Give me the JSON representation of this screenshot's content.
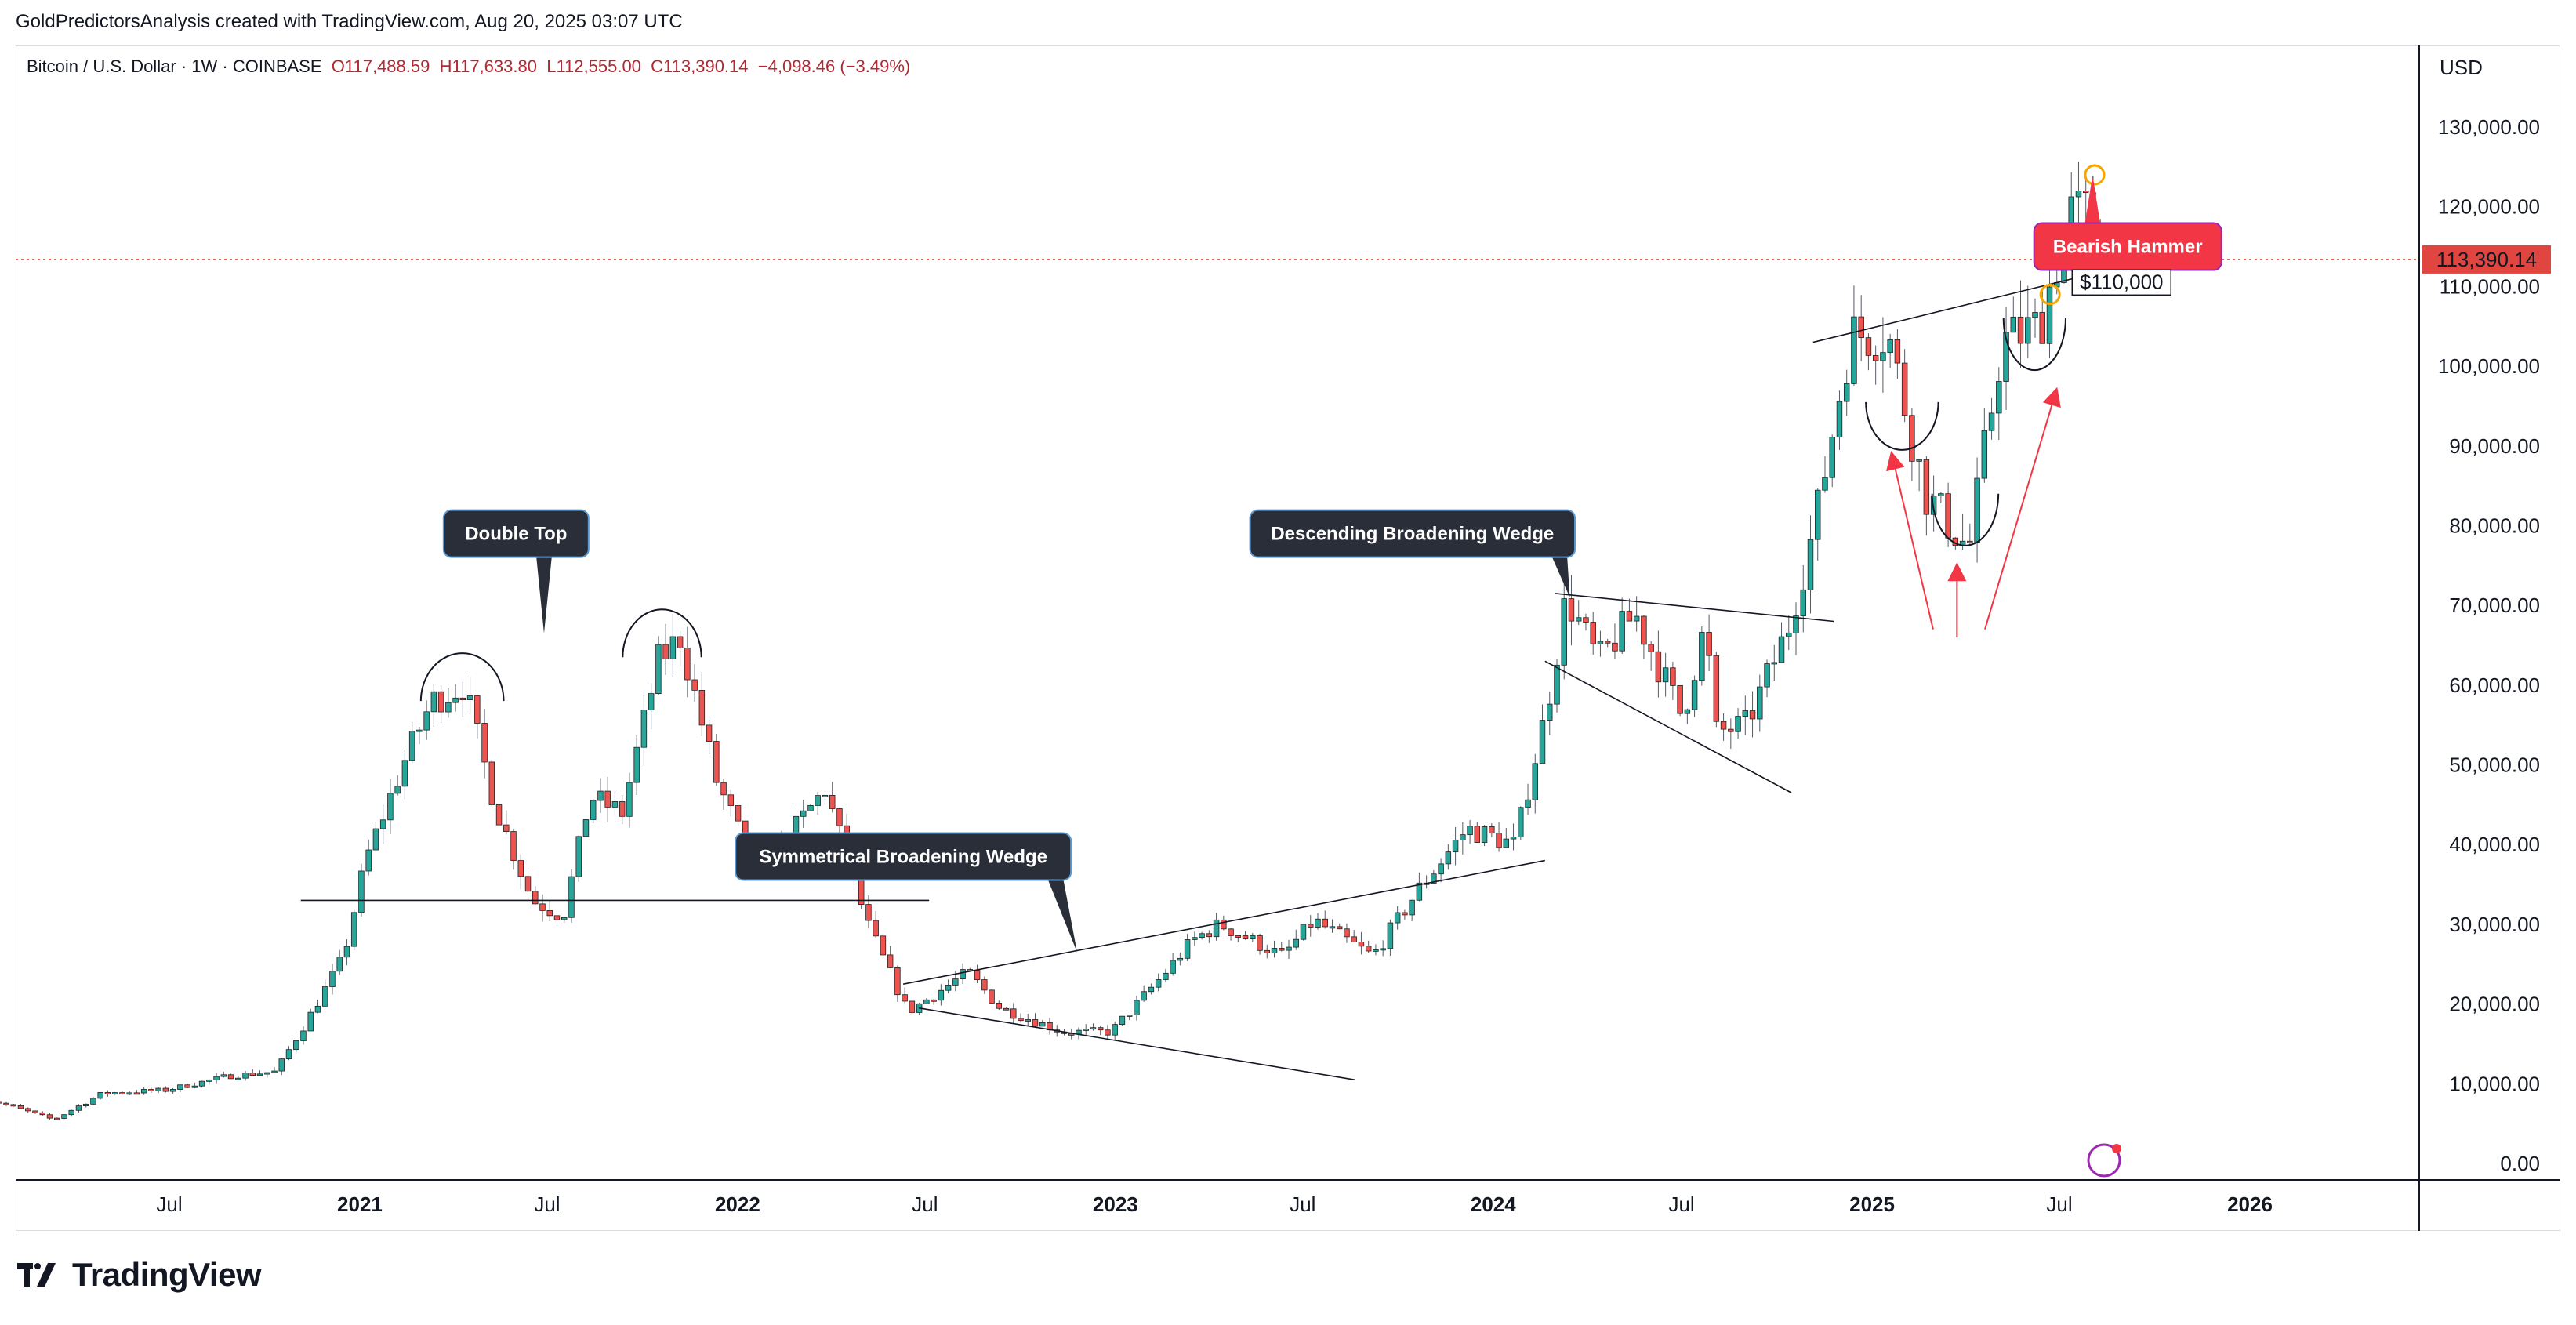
{
  "header": {
    "credit": "GoldPredictorsAnalysis created with TradingView.com, Aug 20, 2025 03:07 UTC"
  },
  "symbol": {
    "name": "Bitcoin / U.S. Dollar · 1W · COINBASE",
    "open": "O117,488.59",
    "high": "H117,633.80",
    "low": "L112,555.00",
    "close": "C113,390.14",
    "change": "−4,098.46 (−3.49%)"
  },
  "footer": {
    "brand": "TradingView"
  },
  "colors": {
    "up": "#26a69a",
    "down": "#ef5350",
    "last_price": "#e0463f",
    "callout_dark": "#2a2e39",
    "callout_red": "#f23645",
    "arrow_red": "#f23645",
    "marker_orange": "#f7a600"
  },
  "chart_data": {
    "type": "candlestick",
    "currency_label": "USD",
    "x_range": [
      "2020-01-01",
      "2026-06-30"
    ],
    "ylim": [
      0,
      135000
    ],
    "y_ticks": [
      0,
      10000,
      20000,
      30000,
      40000,
      50000,
      60000,
      70000,
      80000,
      90000,
      100000,
      110000,
      120000,
      130000
    ],
    "y_tick_labels": [
      "0.00",
      "10,000.00",
      "20,000.00",
      "30,000.00",
      "40,000.00",
      "50,000.00",
      "60,000.00",
      "70,000.00",
      "80,000.00",
      "90,000.00",
      "100,000.00",
      "110,000.00",
      "120,000.00",
      "130,000.00"
    ],
    "x_ticks": [
      {
        "date": "2020-07-01",
        "label": "Jul"
      },
      {
        "date": "2021-01-01",
        "label": "2021"
      },
      {
        "date": "2021-07-01",
        "label": "Jul"
      },
      {
        "date": "2022-01-01",
        "label": "2022"
      },
      {
        "date": "2022-07-01",
        "label": "Jul"
      },
      {
        "date": "2023-01-01",
        "label": "2023"
      },
      {
        "date": "2023-07-01",
        "label": "Jul"
      },
      {
        "date": "2024-01-01",
        "label": "2024"
      },
      {
        "date": "2024-07-01",
        "label": "Jul"
      },
      {
        "date": "2025-01-01",
        "label": "2025"
      },
      {
        "date": "2025-07-01",
        "label": "Jul"
      },
      {
        "date": "2026-01-01",
        "label": "2026"
      }
    ],
    "last_price": {
      "value": 113390.14,
      "label": "113,390.14"
    },
    "price_path": [
      [
        "2020-01-01",
        8500
      ],
      [
        "2020-03-15",
        5500
      ],
      [
        "2020-05-01",
        8800
      ],
      [
        "2020-07-01",
        9200
      ],
      [
        "2020-09-01",
        11000
      ],
      [
        "2020-10-15",
        11500
      ],
      [
        "2020-11-15",
        18000
      ],
      [
        "2020-12-20",
        26000
      ],
      [
        "2021-01-10",
        38000
      ],
      [
        "2021-02-15",
        50000
      ],
      [
        "2021-03-15",
        58000
      ],
      [
        "2021-04-15",
        60000
      ],
      [
        "2021-05-15",
        45000
      ],
      [
        "2021-06-20",
        33000
      ],
      [
        "2021-07-20",
        31000
      ],
      [
        "2021-08-15",
        46000
      ],
      [
        "2021-09-15",
        44000
      ],
      [
        "2021-10-20",
        63000
      ],
      [
        "2021-11-10",
        66000
      ],
      [
        "2021-12-15",
        48000
      ],
      [
        "2022-01-25",
        36000
      ],
      [
        "2022-03-30",
        47000
      ],
      [
        "2022-05-10",
        30000
      ],
      [
        "2022-06-18",
        19000
      ],
      [
        "2022-08-15",
        24000
      ],
      [
        "2022-09-15",
        19500
      ],
      [
        "2022-11-15",
        16500
      ],
      [
        "2022-12-31",
        16500
      ],
      [
        "2023-02-15",
        23000
      ],
      [
        "2023-03-20",
        28000
      ],
      [
        "2023-04-15",
        30000
      ],
      [
        "2023-06-15",
        26000
      ],
      [
        "2023-07-15",
        30500
      ],
      [
        "2023-09-10",
        26000
      ],
      [
        "2023-10-25",
        34500
      ],
      [
        "2023-12-10",
        42000
      ],
      [
        "2024-01-25",
        40000
      ],
      [
        "2024-02-25",
        57000
      ],
      [
        "2024-03-15",
        71000
      ],
      [
        "2024-04-15",
        63000
      ],
      [
        "2024-05-20",
        69000
      ],
      [
        "2024-07-05",
        56000
      ],
      [
        "2024-07-28",
        68000
      ],
      [
        "2024-08-05",
        54000
      ],
      [
        "2024-09-05",
        55000
      ],
      [
        "2024-10-15",
        67000
      ],
      [
        "2024-11-10",
        80000
      ],
      [
        "2024-12-15",
        104000
      ],
      [
        "2025-01-20",
        104000
      ],
      [
        "2025-02-25",
        84000
      ],
      [
        "2025-04-08",
        77000
      ],
      [
        "2025-05-10",
        103000
      ],
      [
        "2025-06-15",
        105000
      ],
      [
        "2025-07-14",
        119000
      ],
      [
        "2025-08-10",
        119000
      ],
      [
        "2025-08-18",
        113390
      ]
    ],
    "trendlines": [
      {
        "from": [
          "2020-11-05",
          33000
        ],
        "to": [
          "2022-07-05",
          33000
        ]
      },
      {
        "from": [
          "2022-06-10",
          22500
        ],
        "to": [
          "2024-02-20",
          38000
        ]
      },
      {
        "from": [
          "2022-06-25",
          19500
        ],
        "to": [
          "2023-08-20",
          10500
        ]
      },
      {
        "from": [
          "2024-03-01",
          71500
        ],
        "to": [
          "2024-11-25",
          68000
        ]
      },
      {
        "from": [
          "2024-02-20",
          63000
        ],
        "to": [
          "2024-10-15",
          46500
        ]
      },
      {
        "from": [
          "2024-11-05",
          103000
        ],
        "to": [
          "2025-08-15",
          112000
        ]
      }
    ],
    "arcs": [
      {
        "center": [
          "2021-04-10",
          58000
        ],
        "rx_days": 40,
        "ry": 6000,
        "dir": "top"
      },
      {
        "center": [
          "2021-10-20",
          63500
        ],
        "rx_days": 38,
        "ry": 6000,
        "dir": "top"
      },
      {
        "center": [
          "2025-01-30",
          95500
        ],
        "rx_days": 35,
        "ry": 6000,
        "dir": "bottom"
      },
      {
        "center": [
          "2025-04-01",
          84000
        ],
        "rx_days": 32,
        "ry": 6500,
        "dir": "bottom"
      },
      {
        "center": [
          "2025-06-07",
          106000
        ],
        "rx_days": 30,
        "ry": 6500,
        "dir": "bottom"
      }
    ],
    "annotations": [
      {
        "text": "Double Top",
        "style": "dark",
        "box": [
          "2021-06-01",
          79000
        ],
        "tail": [
          "2021-06-28",
          66500
        ]
      },
      {
        "text": "Symmetrical Broadening Wedge",
        "style": "dark",
        "box": [
          "2022-06-10",
          38500
        ],
        "tail": [
          "2022-11-25",
          26500
        ]
      },
      {
        "text": "Descending Broadening Wedge",
        "style": "dark",
        "box": [
          "2023-10-15",
          79000
        ],
        "tail": [
          "2024-03-15",
          71000
        ]
      },
      {
        "text": "Bearish Hammer",
        "style": "red",
        "box": [
          "2025-09-05",
          115000
        ],
        "tail": [
          "2025-08-02",
          124000
        ]
      },
      {
        "text": "$110,000",
        "style": "label",
        "box": [
          "2025-08-30",
          110500
        ]
      }
    ],
    "arrows": [
      {
        "from": [
          "2025-03-01",
          67000
        ],
        "to": [
          "2025-01-20",
          89000
        ]
      },
      {
        "from": [
          "2025-03-24",
          66000
        ],
        "to": [
          "2025-03-24",
          75000
        ]
      },
      {
        "from": [
          "2025-04-20",
          67000
        ],
        "to": [
          "2025-06-28",
          97000
        ]
      }
    ],
    "markers": [
      {
        "at": [
          "2025-08-04",
          124000
        ]
      },
      {
        "at": [
          "2025-08-04",
          111000
        ]
      },
      {
        "at": [
          "2025-06-22",
          109000
        ]
      }
    ]
  }
}
